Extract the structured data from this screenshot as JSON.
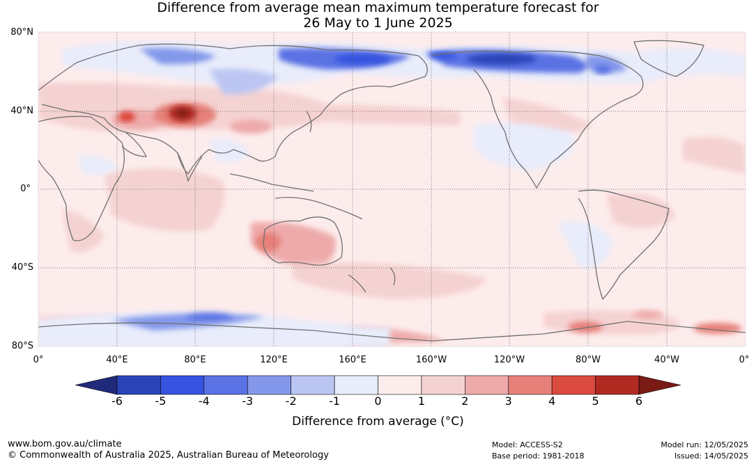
{
  "title": {
    "line1": "Difference from average mean maximum temperature forecast for",
    "line2": "26 May to 1 June 2025"
  },
  "map": {
    "lat_labels": [
      "80°N",
      "40°N",
      "0°",
      "40°S",
      "80°S"
    ],
    "lon_labels": [
      "0°",
      "40°E",
      "80°E",
      "120°E",
      "160°E",
      "160°W",
      "120°W",
      "80°W",
      "40°W",
      "0°"
    ],
    "colors": {
      "land_outline": "#707070",
      "gridline": "#555555"
    }
  },
  "colorbar": {
    "ticks": [
      "-6",
      "-5",
      "-4",
      "-3",
      "-2",
      "-1",
      "0",
      "1",
      "2",
      "3",
      "4",
      "5",
      "6"
    ],
    "label": "Difference from average (°C)",
    "colors": [
      "#1f2a7a",
      "#2a44b8",
      "#3552e0",
      "#5a72e4",
      "#8398ea",
      "#bcc6f2",
      "#e8ecfb",
      "#fdecec",
      "#f5d2d2",
      "#eeaaaa",
      "#e68078",
      "#db4a3e",
      "#b02a22",
      "#7a1a14"
    ]
  },
  "footer": {
    "url": "www.bom.gov.au/climate",
    "copyright": "© Commonwealth of Australia 2025, Australian Bureau of Meteorology",
    "model": "Model: ACCESS-S2",
    "base_period": "Base period: 1981-2018",
    "model_run": "Model run: 12/05/2025",
    "issued": "Issued: 14/05/2025"
  }
}
